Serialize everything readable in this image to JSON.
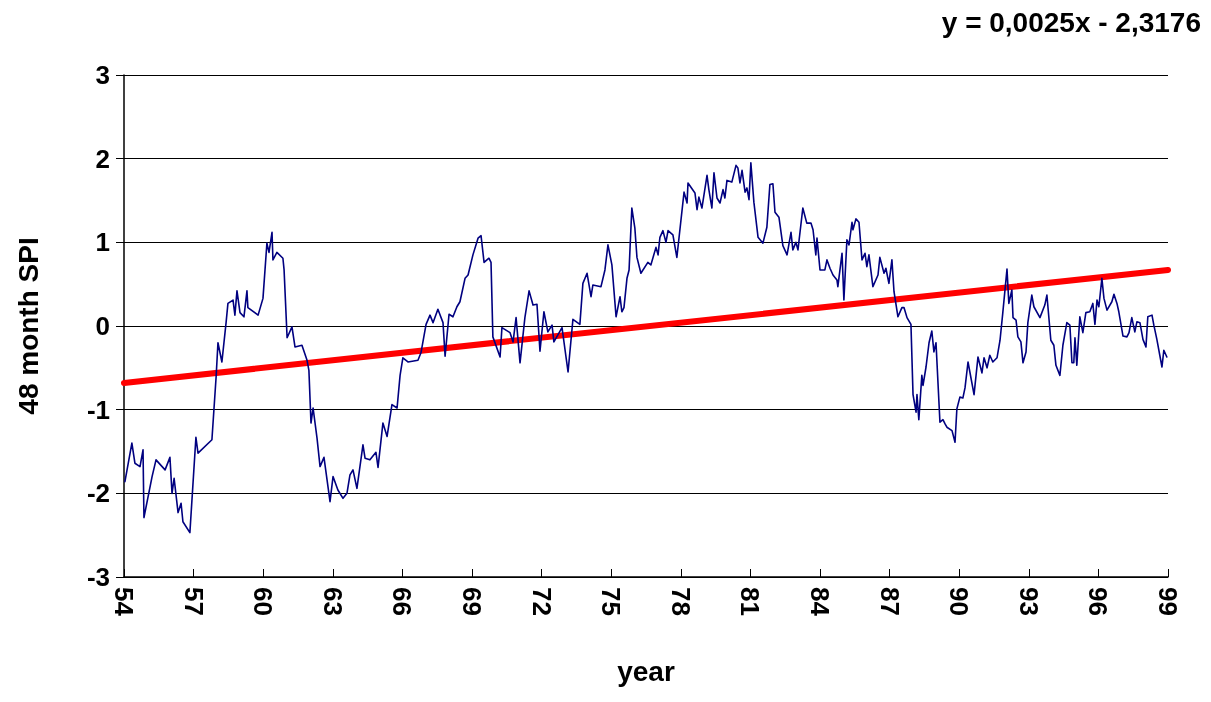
{
  "chart_data": {
    "type": "line",
    "xlabel": "year",
    "ylabel": "48 month SPI",
    "annotations": [
      "y = 0,0025x - 2,3176"
    ],
    "xlim": [
      54,
      99
    ],
    "xticks": [
      54,
      57,
      60,
      63,
      66,
      69,
      72,
      75,
      78,
      81,
      84,
      87,
      90,
      93,
      96,
      99
    ],
    "ylim": [
      -3,
      3
    ],
    "yticks": [
      -3,
      -2,
      -1,
      0,
      1,
      2,
      3
    ],
    "grid": "y",
    "marker": "none",
    "line_style": "solid",
    "series": [
      {
        "color": "#000080",
        "x": [
          54.04,
          54.34,
          54.47,
          54.69,
          54.82,
          54.86,
          55.21,
          55.38,
          55.77,
          55.98,
          56.07,
          56.16,
          56.33,
          56.46,
          56.54,
          56.84,
          57.1,
          57.19,
          57.79,
          57.97,
          58.05,
          58.22,
          58.4,
          58.48,
          58.7,
          58.78,
          58.87,
          59.0,
          59.17,
          59.3,
          59.34,
          59.78,
          59.99,
          60.16,
          60.25,
          60.38,
          60.42,
          60.59,
          60.85,
          60.9,
          61.03,
          61.24,
          61.37,
          61.67,
          61.89,
          61.97,
          62.06,
          62.15,
          62.32,
          62.45,
          62.62,
          62.88,
          63.01,
          63.22,
          63.44,
          63.61,
          63.74,
          63.87,
          64.04,
          64.3,
          64.39,
          64.6,
          64.86,
          64.95,
          65.16,
          65.34,
          65.55,
          65.77,
          65.9,
          66.02,
          66.24,
          66.67,
          66.8,
          67.02,
          67.19,
          67.32,
          67.53,
          67.75,
          67.84,
          68.01,
          68.18,
          68.35,
          68.48,
          68.7,
          68.83,
          69.04,
          69.26,
          69.39,
          69.52,
          69.73,
          69.82,
          69.9,
          70.21,
          70.29,
          70.64,
          70.77,
          70.9,
          71.07,
          71.28,
          71.46,
          71.63,
          71.8,
          71.93,
          72.1,
          72.27,
          72.45,
          72.53,
          72.88,
          73.14,
          73.35,
          73.65,
          73.78,
          73.96,
          74.13,
          74.21,
          74.56,
          74.73,
          74.86,
          75.03,
          75.21,
          75.38,
          75.46,
          75.55,
          75.68,
          75.77,
          75.89,
          76.02,
          76.11,
          76.28,
          76.58,
          76.71,
          76.93,
          77.02,
          77.1,
          77.23,
          77.36,
          77.45,
          77.66,
          77.83,
          78.14,
          78.27,
          78.31,
          78.61,
          78.7,
          78.78,
          78.91,
          79.13,
          79.21,
          79.34,
          79.43,
          79.56,
          79.69,
          79.82,
          79.9,
          79.99,
          80.2,
          80.38,
          80.46,
          80.55,
          80.64,
          80.77,
          80.85,
          80.94,
          81.02,
          81.15,
          81.33,
          81.54,
          81.71,
          81.84,
          81.97,
          82.06,
          82.23,
          82.4,
          82.58,
          82.75,
          82.83,
          82.96,
          83.05,
          83.26,
          83.43,
          83.61,
          83.7,
          83.82,
          83.87,
          84.0,
          84.21,
          84.3,
          84.43,
          84.56,
          84.73,
          84.77,
          84.95,
          85.03,
          85.16,
          85.25,
          85.38,
          85.42,
          85.55,
          85.68,
          85.81,
          85.94,
          86.02,
          86.11,
          86.28,
          86.5,
          86.58,
          86.76,
          86.84,
          86.97,
          87.1,
          87.19,
          87.36,
          87.53,
          87.62,
          87.75,
          87.92,
          88.01,
          88.14,
          88.18,
          88.26,
          88.39,
          88.44,
          88.57,
          88.7,
          88.82,
          88.91,
          89.0,
          89.17,
          89.3,
          89.39,
          89.47,
          89.69,
          89.82,
          89.9,
          90.03,
          90.16,
          90.25,
          90.38,
          90.46,
          90.64,
          90.81,
          90.98,
          91.07,
          91.2,
          91.32,
          91.45,
          91.63,
          91.76,
          91.88,
          92.06,
          92.14,
          92.27,
          92.32,
          92.45,
          92.53,
          92.66,
          92.75,
          92.88,
          92.96,
          93.13,
          93.22,
          93.48,
          93.69,
          93.78,
          93.95,
          94.08,
          94.17,
          94.34,
          94.47,
          94.64,
          94.77,
          94.86,
          94.94,
          94.99,
          95.07,
          95.2,
          95.33,
          95.46,
          95.63,
          95.76,
          95.85,
          95.94,
          96.02,
          96.15,
          96.24,
          96.37,
          96.58,
          96.67,
          96.8,
          96.88,
          97.06,
          97.23,
          97.32,
          97.44,
          97.57,
          97.66,
          97.79,
          97.92,
          98.05,
          98.13,
          98.31,
          98.39,
          98.52,
          98.74,
          98.82,
          98.95
        ],
        "values": [
          -1.86,
          -1.4,
          -1.64,
          -1.68,
          -1.48,
          -2.29,
          -1.8,
          -1.6,
          -1.72,
          -1.57,
          -2.0,
          -1.82,
          -2.23,
          -2.12,
          -2.34,
          -2.47,
          -1.33,
          -1.52,
          -1.36,
          -0.61,
          -0.2,
          -0.43,
          0.04,
          0.27,
          0.31,
          0.13,
          0.42,
          0.16,
          0.11,
          0.42,
          0.22,
          0.13,
          0.33,
          0.99,
          0.88,
          1.12,
          0.79,
          0.88,
          0.81,
          0.67,
          -0.14,
          -0.01,
          -0.25,
          -0.23,
          -0.41,
          -0.53,
          -1.16,
          -0.98,
          -1.34,
          -1.68,
          -1.57,
          -2.1,
          -1.8,
          -1.96,
          -2.06,
          -2.0,
          -1.78,
          -1.72,
          -1.94,
          -1.42,
          -1.58,
          -1.6,
          -1.51,
          -1.69,
          -1.16,
          -1.32,
          -0.94,
          -0.98,
          -0.59,
          -0.38,
          -0.43,
          -0.41,
          -0.32,
          0.02,
          0.13,
          0.04,
          0.2,
          0.04,
          -0.36,
          0.14,
          0.11,
          0.23,
          0.29,
          0.57,
          0.61,
          0.85,
          1.05,
          1.08,
          0.76,
          0.81,
          0.76,
          -0.13,
          -0.37,
          -0.02,
          -0.08,
          -0.19,
          0.1,
          -0.44,
          0.1,
          0.42,
          0.25,
          0.26,
          -0.3,
          0.17,
          -0.07,
          0.01,
          -0.19,
          -0.02,
          -0.55,
          0.08,
          0.02,
          0.51,
          0.63,
          0.35,
          0.49,
          0.47,
          0.67,
          0.97,
          0.73,
          0.11,
          0.35,
          0.17,
          0.22,
          0.57,
          0.67,
          1.41,
          1.17,
          0.82,
          0.63,
          0.76,
          0.73,
          0.94,
          0.85,
          1.06,
          1.14,
          1.0,
          1.14,
          1.09,
          0.82,
          1.6,
          1.47,
          1.71,
          1.59,
          1.39,
          1.54,
          1.41,
          1.8,
          1.63,
          1.41,
          1.83,
          1.53,
          1.47,
          1.63,
          1.53,
          1.74,
          1.72,
          1.92,
          1.89,
          1.71,
          1.86,
          1.6,
          1.65,
          1.51,
          1.95,
          1.48,
          1.06,
          0.99,
          1.18,
          1.69,
          1.7,
          1.36,
          1.3,
          0.96,
          0.85,
          1.12,
          0.91,
          1.0,
          0.91,
          1.41,
          1.23,
          1.23,
          1.15,
          0.85,
          1.05,
          0.67,
          0.67,
          0.79,
          0.69,
          0.61,
          0.55,
          0.47,
          0.87,
          0.31,
          1.03,
          0.97,
          1.24,
          1.15,
          1.28,
          1.24,
          0.79,
          0.87,
          0.71,
          0.85,
          0.47,
          0.61,
          0.82,
          0.63,
          0.69,
          0.51,
          0.79,
          0.41,
          0.11,
          0.22,
          0.22,
          0.1,
          0.02,
          -0.82,
          -1.03,
          -0.82,
          -1.12,
          -0.59,
          -0.71,
          -0.49,
          -0.2,
          -0.06,
          -0.31,
          -0.2,
          -1.15,
          -1.12,
          -1.17,
          -1.21,
          -1.25,
          -1.39,
          -0.99,
          -0.85,
          -0.86,
          -0.74,
          -0.43,
          -0.55,
          -0.82,
          -0.37,
          -0.56,
          -0.38,
          -0.5,
          -0.35,
          -0.43,
          -0.38,
          -0.17,
          0.16,
          0.68,
          0.27,
          0.43,
          0.1,
          0.07,
          -0.13,
          -0.19,
          -0.44,
          -0.31,
          0.04,
          0.37,
          0.23,
          0.1,
          0.25,
          0.37,
          -0.17,
          -0.23,
          -0.47,
          -0.59,
          -0.23,
          0.04,
          0.01,
          -0.44,
          -0.44,
          -0.14,
          -0.47,
          0.11,
          -0.08,
          0.16,
          0.17,
          0.27,
          0.02,
          0.31,
          0.23,
          0.57,
          0.33,
          0.19,
          0.29,
          0.38,
          0.27,
          0.17,
          -0.12,
          -0.13,
          -0.08,
          0.1,
          -0.07,
          0.05,
          0.04,
          -0.16,
          -0.25,
          0.11,
          0.13,
          0.01,
          -0.16,
          -0.49,
          -0.29,
          -0.37
        ]
      },
      {
        "type": "line",
        "color": "#ff0000",
        "x": [
          54,
          99
        ],
        "values": [
          -0.68,
          0.67
        ]
      }
    ]
  }
}
